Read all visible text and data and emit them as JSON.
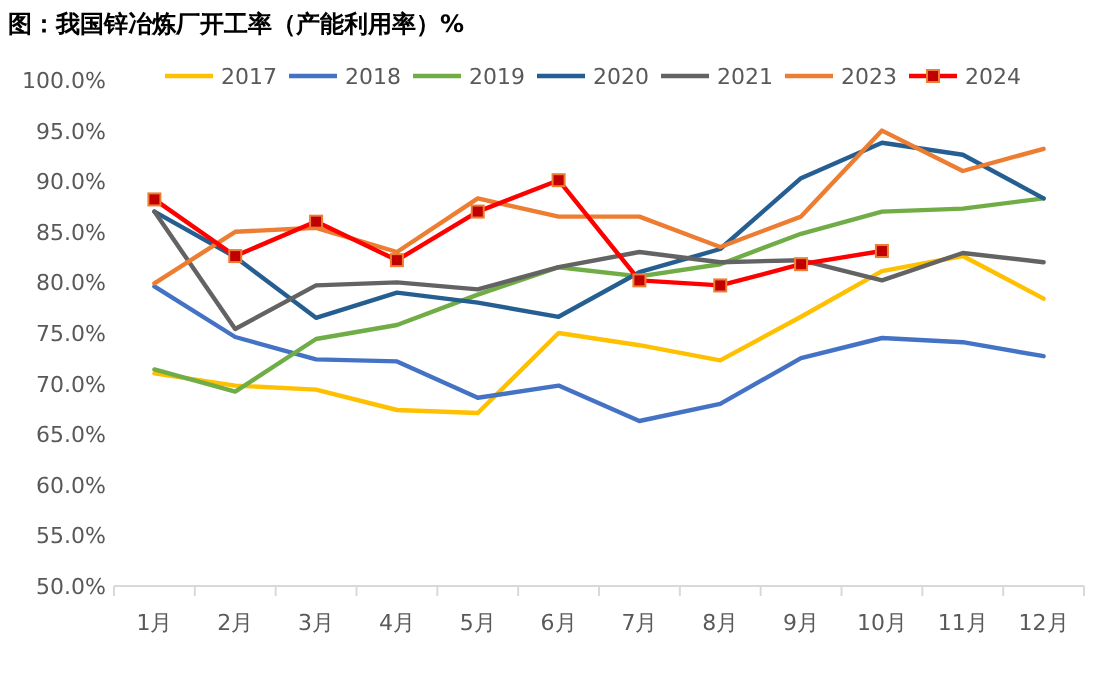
{
  "chart_data": {
    "type": "line",
    "title": "图：我国锌冶炼厂开工率（产能利用率）%",
    "categories": [
      "1月",
      "2月",
      "3月",
      "4月",
      "5月",
      "6月",
      "7月",
      "8月",
      "9月",
      "10月",
      "11月",
      "12月"
    ],
    "series": [
      {
        "name": "2017",
        "color": "#ffc000",
        "values": [
          71.0,
          69.8,
          69.4,
          67.4,
          67.1,
          75.0,
          73.8,
          72.3,
          76.6,
          81.1,
          82.6,
          78.4
        ]
      },
      {
        "name": "2018",
        "color": "#4472c4",
        "values": [
          79.6,
          74.6,
          72.4,
          72.2,
          68.6,
          69.8,
          66.3,
          68.0,
          72.5,
          74.5,
          74.1,
          72.7
        ]
      },
      {
        "name": "2019",
        "color": "#70ad47",
        "values": [
          71.4,
          69.2,
          74.4,
          75.8,
          78.8,
          81.5,
          80.6,
          81.8,
          84.8,
          87.0,
          87.3,
          88.3
        ]
      },
      {
        "name": "2020",
        "color": "#255e91",
        "values": [
          87.0,
          82.5,
          76.5,
          79.0,
          78.0,
          76.6,
          81.0,
          83.3,
          90.3,
          93.8,
          92.6,
          88.3
        ]
      },
      {
        "name": "2021",
        "color": "#636363",
        "values": [
          87.0,
          75.4,
          79.7,
          80.0,
          79.3,
          81.5,
          83.0,
          82.0,
          82.2,
          80.2,
          82.9,
          82.0
        ]
      },
      {
        "name": "2023",
        "color": "#ed7d31",
        "values": [
          79.9,
          85.0,
          85.4,
          83.0,
          88.3,
          86.5,
          86.5,
          83.5,
          86.5,
          95.0,
          91.0,
          93.2
        ]
      },
      {
        "name": "2024",
        "color": "#ff0000",
        "marker": "square",
        "values": [
          88.2,
          82.6,
          86.0,
          82.2,
          87.0,
          90.1,
          80.2,
          79.7,
          81.8,
          83.1,
          null,
          null
        ]
      }
    ],
    "ylim": [
      50,
      100
    ],
    "yticks": [
      {
        "value": 50,
        "label": "50.0%"
      },
      {
        "value": 55,
        "label": "55.0%"
      },
      {
        "value": 60,
        "label": "60.0%"
      },
      {
        "value": 65,
        "label": "65.0%"
      },
      {
        "value": 70,
        "label": "70.0%"
      },
      {
        "value": 75,
        "label": "75.0%"
      },
      {
        "value": 80,
        "label": "80.0%"
      },
      {
        "value": 85,
        "label": "85.0%"
      },
      {
        "value": 90,
        "label": "90.0%"
      },
      {
        "value": 95,
        "label": "95.0%"
      },
      {
        "value": 100,
        "label": "100.0%"
      }
    ],
    "grid": false,
    "legend": "top"
  }
}
